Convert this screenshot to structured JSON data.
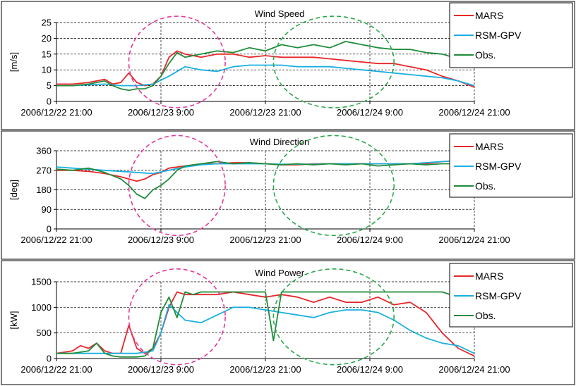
{
  "chart_data": [
    {
      "type": "line",
      "title": "Wind Speed",
      "xlabel": "",
      "ylabel": "[m/s]",
      "ylim": [
        0,
        25
      ],
      "yticks": [
        "0",
        "5",
        "10",
        "15",
        "20",
        "25"
      ],
      "xticks": [
        "2006/12/22 21:00",
        "2006/12/23 9:00",
        "2006/12/23 21:00",
        "2006/12/24 9:00",
        "2006/12/24 21:00"
      ],
      "xlim": [
        0,
        52
      ],
      "grid": true,
      "legend": "top-right",
      "series": [
        {
          "name": "MARS",
          "color": "#e8262a",
          "x": [
            0,
            2,
            4,
            6,
            7,
            8,
            9,
            10,
            11,
            12,
            13,
            14,
            15,
            16,
            18,
            20,
            22,
            24,
            26,
            28,
            30,
            32,
            34,
            36,
            38,
            40,
            42,
            44,
            46,
            48,
            50,
            52
          ],
          "values": [
            5.5,
            5.5,
            6,
            7,
            5.5,
            6,
            9,
            6,
            5,
            5.5,
            8,
            14,
            16,
            15,
            14,
            15,
            15,
            14,
            14.5,
            14,
            14,
            14,
            13.5,
            13,
            12.5,
            12,
            12,
            11,
            10,
            8,
            6.5,
            4.5
          ]
        },
        {
          "name": "RSM-GPV",
          "color": "#1ab0e0",
          "x": [
            0,
            2,
            4,
            6,
            8,
            10,
            12,
            14,
            16,
            18,
            20,
            22,
            24,
            26,
            28,
            30,
            32,
            34,
            36,
            38,
            40,
            42,
            44,
            46,
            48,
            50,
            52
          ],
          "values": [
            5,
            5,
            5.3,
            5.5,
            5,
            5,
            5.5,
            8,
            11,
            10,
            9.5,
            11,
            11.5,
            11.5,
            11.5,
            11,
            11,
            11,
            10.5,
            10,
            9.5,
            9,
            8.5,
            8,
            7.5,
            6.5,
            5
          ]
        },
        {
          "name": "Obs.",
          "color": "#1e8c3a",
          "x": [
            0,
            2,
            4,
            6,
            7,
            8,
            9,
            10,
            11,
            12,
            13,
            14,
            15,
            16,
            18,
            20,
            22,
            24,
            26,
            28,
            30,
            32,
            34,
            36,
            38,
            40,
            42,
            44,
            46,
            48,
            50,
            51,
            52
          ],
          "values": [
            5,
            5,
            5.5,
            6.5,
            5,
            4,
            3.5,
            4,
            4,
            5,
            8,
            12,
            15.5,
            14,
            15,
            16,
            15.5,
            17,
            16,
            18,
            17,
            18,
            17,
            19,
            18,
            17,
            16.5,
            16.5,
            15.5,
            15,
            13.5,
            12,
            12
          ]
        }
      ],
      "annotations": [
        {
          "shape": "ellipse",
          "color": "#e0399a",
          "x": [
            9,
            21
          ],
          "y": [
            -2,
            27
          ]
        },
        {
          "shape": "ellipse",
          "color": "#2aa84a",
          "x": [
            27,
            42
          ],
          "y": [
            -2,
            27
          ]
        }
      ]
    },
    {
      "type": "line",
      "title": "Wind Direction",
      "xlabel": "",
      "ylabel": "[deg]",
      "ylim": [
        0,
        360
      ],
      "yticks": [
        "0",
        "90",
        "180",
        "270",
        "360"
      ],
      "xticks": [
        "2006/12/22 21:00",
        "2006/12/23 9:00",
        "2006/12/23 21:00",
        "2006/12/24 9:00",
        "2006/12/24 21:00"
      ],
      "xlim": [
        0,
        52
      ],
      "grid": true,
      "legend": "top-right",
      "series": [
        {
          "name": "MARS",
          "color": "#e8262a",
          "x": [
            0,
            2,
            4,
            6,
            8,
            10,
            11,
            12,
            13,
            14,
            16,
            18,
            20,
            22,
            24,
            26,
            28,
            30,
            32,
            34,
            36,
            38,
            40,
            42,
            44,
            46,
            48,
            50,
            52
          ],
          "values": [
            270,
            270,
            265,
            255,
            240,
            220,
            230,
            250,
            260,
            280,
            290,
            300,
            300,
            305,
            305,
            300,
            295,
            295,
            300,
            300,
            300,
            300,
            300,
            300,
            300,
            300,
            310,
            315,
            315
          ]
        },
        {
          "name": "RSM-GPV",
          "color": "#1ab0e0",
          "x": [
            0,
            2,
            4,
            6,
            8,
            10,
            12,
            14,
            16,
            18,
            20,
            22,
            24,
            26,
            28,
            30,
            32,
            34,
            36,
            38,
            40,
            42,
            44,
            46,
            48,
            50,
            52
          ],
          "values": [
            285,
            280,
            275,
            270,
            265,
            260,
            255,
            270,
            285,
            295,
            300,
            300,
            300,
            300,
            298,
            298,
            298,
            300,
            300,
            300,
            300,
            300,
            300,
            305,
            310,
            315,
            315
          ]
        },
        {
          "name": "Obs.",
          "color": "#1e8c3a",
          "x": [
            0,
            2,
            4,
            6,
            8,
            9,
            10,
            11,
            12,
            13,
            14,
            15,
            16,
            18,
            20,
            22,
            24,
            26,
            28,
            30,
            32,
            34,
            36,
            38,
            40,
            42,
            44,
            46,
            48,
            50,
            52
          ],
          "values": [
            275,
            270,
            280,
            260,
            230,
            200,
            160,
            140,
            180,
            200,
            230,
            270,
            290,
            300,
            310,
            300,
            305,
            300,
            295,
            300,
            295,
            300,
            295,
            300,
            290,
            295,
            300,
            295,
            300,
            300,
            310
          ]
        }
      ],
      "annotations": [
        {
          "shape": "ellipse",
          "color": "#e0399a",
          "x": [
            9,
            21
          ],
          "y": [
            -30,
            430
          ]
        },
        {
          "shape": "ellipse",
          "color": "#2aa84a",
          "x": [
            27,
            42
          ],
          "y": [
            -30,
            430
          ]
        }
      ]
    },
    {
      "type": "line",
      "title": "Wind Power",
      "xlabel": "",
      "ylabel": "[kW]",
      "ylim": [
        0,
        1500
      ],
      "yticks": [
        "0",
        "500",
        "1000",
        "1500"
      ],
      "xticks": [
        "2006/12/22 21:00",
        "2006/12/23 9:00",
        "2006/12/23 21:00",
        "2006/12/24 9:00",
        "2006/12/24 21:00"
      ],
      "xlim": [
        0,
        52
      ],
      "grid": true,
      "legend": "top-right",
      "series": [
        {
          "name": "MARS",
          "color": "#e8262a",
          "x": [
            0,
            2,
            3,
            4,
            5,
            6,
            7,
            8,
            9,
            10,
            11,
            12,
            13,
            14,
            15,
            16,
            18,
            20,
            22,
            24,
            26,
            28,
            30,
            32,
            34,
            36,
            38,
            40,
            42,
            44,
            46,
            48,
            50,
            52
          ],
          "values": [
            100,
            150,
            250,
            200,
            300,
            150,
            100,
            100,
            650,
            200,
            100,
            200,
            500,
            1000,
            1300,
            1250,
            1250,
            1250,
            1300,
            1250,
            1200,
            1250,
            1200,
            1100,
            1200,
            1100,
            1100,
            1200,
            1050,
            1100,
            900,
            500,
            200,
            50
          ]
        },
        {
          "name": "RSM-GPV",
          "color": "#1ab0e0",
          "x": [
            0,
            2,
            4,
            6,
            8,
            10,
            12,
            13,
            14,
            16,
            18,
            20,
            22,
            24,
            26,
            28,
            30,
            32,
            34,
            36,
            38,
            40,
            42,
            44,
            46,
            48,
            50,
            52
          ],
          "values": [
            100,
            100,
            100,
            100,
            100,
            100,
            150,
            500,
            1050,
            750,
            700,
            850,
            1000,
            1000,
            950,
            900,
            850,
            800,
            900,
            950,
            950,
            900,
            750,
            550,
            400,
            300,
            250,
            100
          ]
        },
        {
          "name": "Obs.",
          "color": "#1e8c3a",
          "x": [
            0,
            2,
            4,
            5,
            6,
            7,
            8,
            9,
            10,
            11,
            12,
            13,
            14,
            15,
            16,
            17,
            18,
            20,
            22,
            24,
            26,
            27,
            28,
            30,
            32,
            34,
            36,
            38,
            40,
            42,
            44,
            46,
            48,
            50,
            52
          ],
          "values": [
            100,
            100,
            150,
            300,
            100,
            50,
            30,
            30,
            30,
            50,
            200,
            900,
            1200,
            800,
            1300,
            1250,
            1300,
            1300,
            1300,
            1300,
            1300,
            350,
            1300,
            1300,
            1300,
            1300,
            1300,
            1300,
            1300,
            1300,
            1300,
            1300,
            1300,
            1200,
            1150
          ]
        }
      ],
      "annotations": [
        {
          "shape": "ellipse",
          "color": "#e0399a",
          "x": [
            9,
            21
          ],
          "y": [
            -120,
            1750
          ]
        },
        {
          "shape": "ellipse",
          "color": "#2aa84a",
          "x": [
            27,
            42
          ],
          "y": [
            -120,
            1750
          ]
        }
      ]
    }
  ]
}
